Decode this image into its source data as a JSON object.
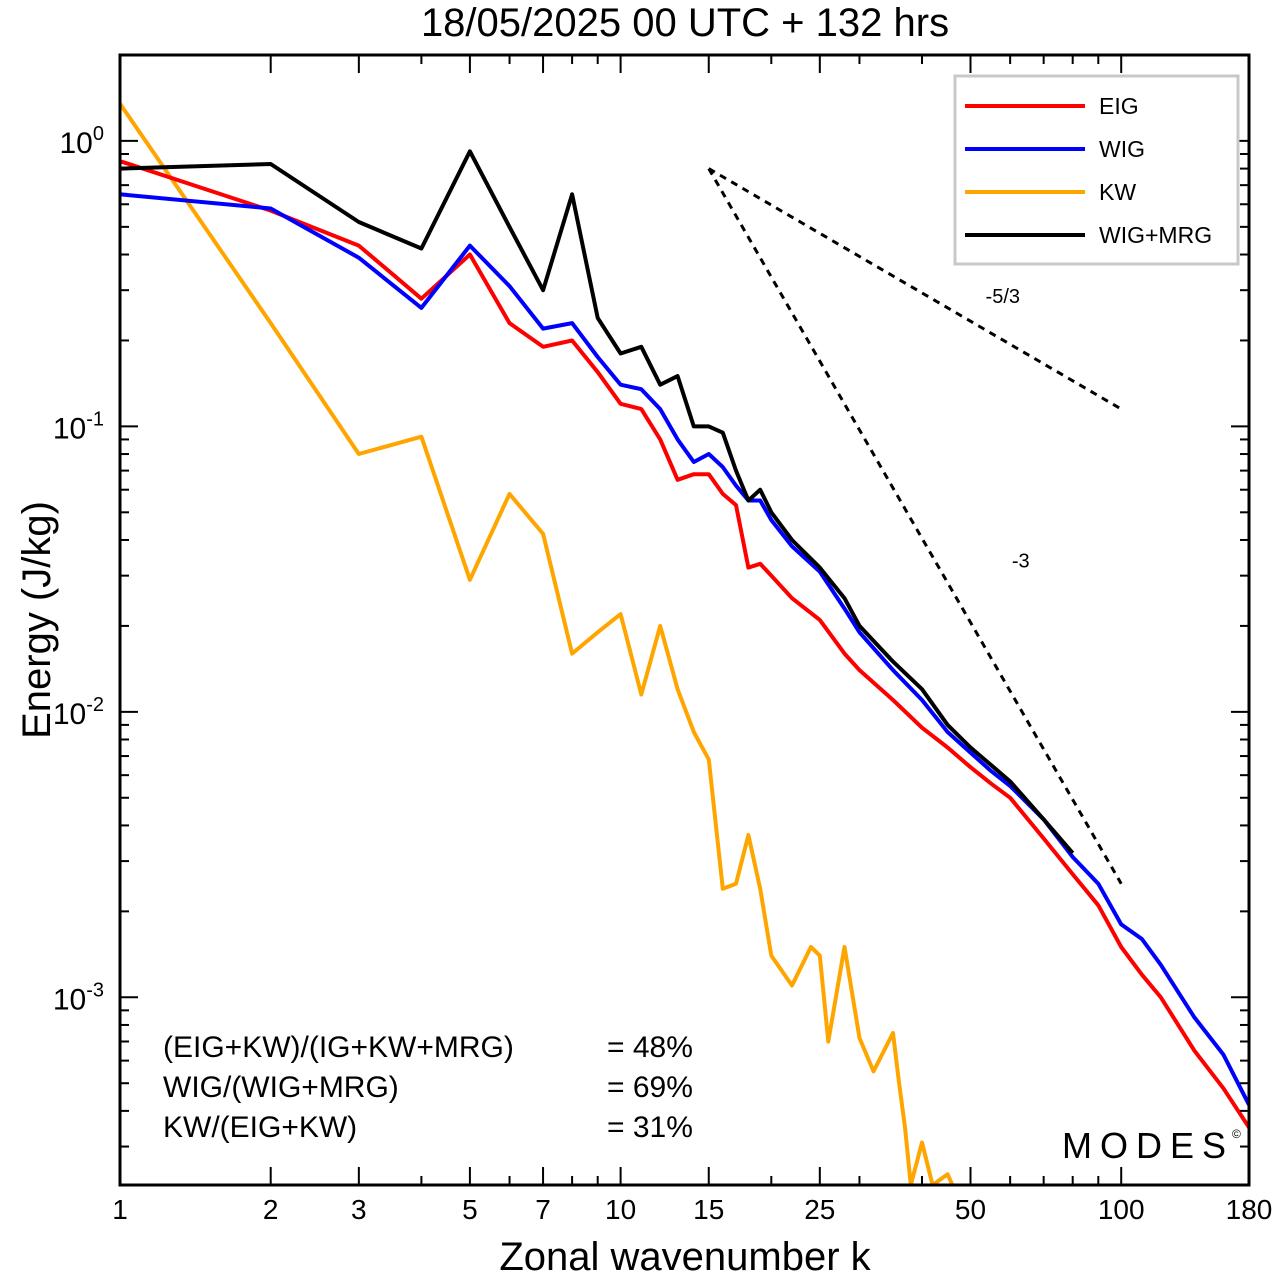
{
  "chart_data": {
    "type": "line",
    "title": "18/05/2025  00 UTC  + 132 hrs",
    "xlabel": "Zonal wavenumber k",
    "ylabel": "Energy (J/kg)",
    "x_scale": "log",
    "y_scale": "log",
    "xlim": [
      1,
      180
    ],
    "ylim": [
      0.00022,
      2.0
    ],
    "x_ticks": [
      1,
      2,
      3,
      5,
      7,
      10,
      15,
      25,
      50,
      100,
      180
    ],
    "x_tick_labels": [
      "1",
      "2",
      "3",
      "5",
      "7",
      "10",
      "15",
      "25",
      "50",
      "100",
      "180"
    ],
    "y_ticks": [
      {
        "value": 1.0,
        "base": "10",
        "exp": "0"
      },
      {
        "value": 0.1,
        "base": "10",
        "exp": "-1"
      },
      {
        "value": 0.01,
        "base": "10",
        "exp": "-2"
      },
      {
        "value": 0.001,
        "base": "10",
        "exp": "-3"
      }
    ],
    "grid": false,
    "legend_position": "top-right",
    "series": [
      {
        "name": "EIG",
        "color": "#ff0000",
        "x": [
          1,
          2,
          3,
          4,
          5,
          6,
          7,
          8,
          9,
          10,
          11,
          12,
          13,
          14,
          15,
          16,
          17,
          18,
          19,
          20,
          22,
          25,
          28,
          30,
          35,
          40,
          45,
          50,
          55,
          60,
          70,
          80,
          90,
          100,
          110,
          120,
          140,
          160,
          180
        ],
        "y": [
          0.85,
          0.57,
          0.43,
          0.28,
          0.4,
          0.23,
          0.19,
          0.2,
          0.155,
          0.12,
          0.115,
          0.09,
          0.065,
          0.068,
          0.068,
          0.058,
          0.053,
          0.032,
          0.033,
          0.03,
          0.025,
          0.021,
          0.016,
          0.014,
          0.011,
          0.0088,
          0.0075,
          0.0064,
          0.0056,
          0.005,
          0.0036,
          0.0027,
          0.0021,
          0.0015,
          0.0012,
          0.001,
          0.00065,
          0.00048,
          0.00035
        ]
      },
      {
        "name": "WIG",
        "color": "#0000ff",
        "x": [
          1,
          2,
          3,
          4,
          5,
          6,
          7,
          8,
          9,
          10,
          11,
          12,
          13,
          14,
          15,
          16,
          17,
          18,
          19,
          20,
          22,
          25,
          28,
          30,
          35,
          40,
          45,
          50,
          55,
          60,
          70,
          80,
          90,
          100,
          110,
          120,
          140,
          160,
          180
        ],
        "y": [
          0.65,
          0.58,
          0.39,
          0.26,
          0.43,
          0.31,
          0.22,
          0.23,
          0.175,
          0.14,
          0.135,
          0.115,
          0.09,
          0.075,
          0.08,
          0.072,
          0.062,
          0.055,
          0.055,
          0.047,
          0.038,
          0.031,
          0.023,
          0.019,
          0.014,
          0.011,
          0.0085,
          0.0072,
          0.0062,
          0.0055,
          0.0042,
          0.0031,
          0.0025,
          0.0018,
          0.0016,
          0.0013,
          0.00085,
          0.00063,
          0.00042
        ]
      },
      {
        "name": "KW",
        "color": "#ffa500",
        "x": [
          1,
          2,
          3,
          4,
          5,
          6,
          7,
          8,
          9,
          10,
          11,
          12,
          13,
          14,
          15,
          16,
          17,
          18,
          19,
          20,
          22,
          24,
          25,
          26,
          28,
          30,
          32,
          35,
          36,
          37,
          38,
          40,
          42,
          45,
          46
        ],
        "y": [
          1.35,
          0.23,
          0.08,
          0.092,
          0.029,
          0.058,
          0.042,
          0.016,
          0.019,
          0.022,
          0.0115,
          0.02,
          0.012,
          0.0085,
          0.0068,
          0.0024,
          0.0025,
          0.0037,
          0.0024,
          0.0014,
          0.0011,
          0.0015,
          0.0014,
          0.0007,
          0.0015,
          0.00072,
          0.00055,
          0.00075,
          0.0005,
          0.00035,
          0.00022,
          0.00031,
          0.00022,
          0.00024,
          0.00022
        ]
      },
      {
        "name": "WIG+MRG",
        "color": "#000000",
        "x": [
          1,
          2,
          3,
          4,
          5,
          6,
          7,
          8,
          9,
          10,
          11,
          12,
          13,
          14,
          15,
          16,
          17,
          18,
          19,
          20,
          22,
          25,
          28,
          30,
          35,
          40,
          45,
          50,
          55,
          60,
          70,
          80
        ],
        "y": [
          0.8,
          0.83,
          0.52,
          0.42,
          0.92,
          0.5,
          0.3,
          0.65,
          0.24,
          0.18,
          0.19,
          0.14,
          0.15,
          0.1,
          0.1,
          0.095,
          0.07,
          0.055,
          0.06,
          0.05,
          0.04,
          0.032,
          0.025,
          0.02,
          0.015,
          0.012,
          0.009,
          0.0075,
          0.0065,
          0.0057,
          0.0042,
          0.0032
        ]
      }
    ],
    "reference_lines": [
      {
        "label": "-5/3",
        "x": [
          15,
          100
        ],
        "y": [
          0.8,
          0.115
        ],
        "label_x": 58,
        "label_y": 0.27
      },
      {
        "label": "-3",
        "x": [
          15,
          100
        ],
        "y": [
          0.8,
          0.0025
        ],
        "label_x": 63,
        "label_y": 0.032
      }
    ],
    "annotations": [
      {
        "label": "(EIG+KW)/(IG+KW+MRG)",
        "value": "= 48%"
      },
      {
        "label": "WIG/(WIG+MRG)",
        "value": "= 69%"
      },
      {
        "label": "KW/(EIG+KW)",
        "value": "= 31%"
      }
    ],
    "watermark": "MODES",
    "watermark_symbol": "©"
  }
}
